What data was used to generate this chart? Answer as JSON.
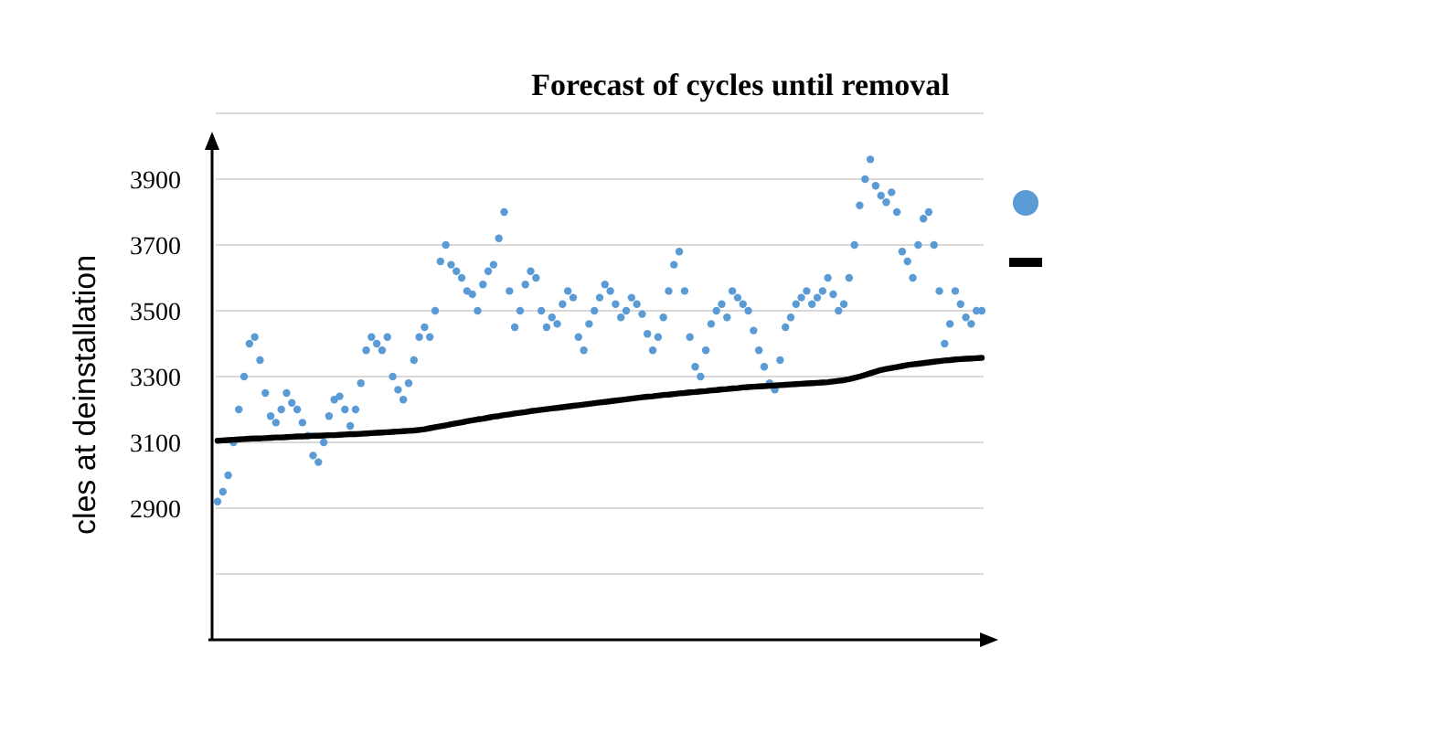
{
  "chart_data": {
    "type": "scatter",
    "title": "Forecast of cycles until removal",
    "ylabel": "cles at deinstallation",
    "categories": [
      null,
      null,
      null,
      null,
      null,
      null,
      null,
      null,
      null,
      null,
      null,
      null,
      null,
      null,
      null,
      null,
      null,
      null,
      null,
      null,
      null,
      null,
      null,
      null,
      null,
      null,
      null,
      null,
      null,
      null,
      null,
      null,
      null,
      null,
      null,
      null,
      null,
      null,
      null,
      null,
      null,
      null,
      null,
      null,
      null,
      null,
      null,
      null,
      null,
      null,
      null,
      null,
      null,
      null,
      null,
      null,
      null,
      null,
      null,
      null,
      null,
      null,
      null,
      null,
      null,
      null,
      null,
      null,
      null,
      null,
      null,
      null,
      null,
      null,
      null,
      null,
      null,
      null,
      null,
      null,
      null,
      null,
      null,
      null,
      null,
      null,
      null,
      null,
      null,
      null,
      null,
      null,
      null,
      null,
      null,
      null,
      null,
      null,
      null,
      null,
      null,
      null,
      null,
      null,
      null,
      null,
      null,
      null,
      null,
      null,
      null,
      null,
      null,
      null,
      null,
      null,
      null,
      null,
      null,
      null,
      null,
      null,
      null,
      null,
      null,
      null,
      null,
      null,
      null,
      null,
      null,
      null,
      null,
      null,
      null,
      null,
      null,
      null,
      null,
      null,
      null,
      null,
      null,
      null,
      null
    ],
    "series": [
      {
        "color": "#5b9bd5",
        "marker": "circle",
        "values": [
          2920,
          2950,
          3000,
          3100,
          3200,
          3300,
          3400,
          3420,
          3350,
          3250,
          3180,
          3160,
          3200,
          3250,
          3220,
          3200,
          3160,
          3120,
          3060,
          3040,
          3100,
          3180,
          3230,
          3240,
          3200,
          3150,
          3200,
          3280,
          3380,
          3420,
          3400,
          3380,
          3420,
          3300,
          3260,
          3230,
          3280,
          3350,
          3420,
          3450,
          3420,
          3500,
          3650,
          3700,
          3640,
          3620,
          3600,
          3560,
          3550,
          3500,
          3580,
          3620,
          3640,
          3720,
          3800,
          3560,
          3450,
          3500,
          3580,
          3620,
          3600,
          3500,
          3450,
          3480,
          3460,
          3520,
          3560,
          3540,
          3420,
          3380,
          3460,
          3500,
          3540,
          3580,
          3560,
          3520,
          3480,
          3500,
          3540,
          3520,
          3490,
          3430,
          3380,
          3420,
          3480,
          3560,
          3640,
          3680,
          3560,
          3420,
          3330,
          3300,
          3380,
          3460,
          3500,
          3520,
          3480,
          3560,
          3540,
          3520,
          3500,
          3440,
          3380,
          3330,
          3280,
          3260,
          3350,
          3450,
          3480,
          3520,
          3540,
          3560,
          3520,
          3540,
          3560,
          3600,
          3550,
          3500,
          3520,
          3600,
          3700,
          3820,
          3900,
          3960,
          3880,
          3850,
          3830,
          3860,
          3800,
          3680,
          3650,
          3600,
          3700,
          3780,
          3800,
          3700,
          3560,
          3400,
          3460,
          3560,
          3520,
          3480,
          3460,
          3500,
          3500
        ]
      },
      {
        "type": "line",
        "color": "#000000",
        "values": [
          3105,
          3106,
          3107,
          3108,
          3109,
          3110,
          3111,
          3112,
          3112,
          3113,
          3114,
          3115,
          3115,
          3116,
          3117,
          3118,
          3118,
          3119,
          3120,
          3120,
          3121,
          3122,
          3122,
          3123,
          3124,
          3125,
          3125,
          3126,
          3127,
          3128,
          3129,
          3130,
          3131,
          3132,
          3133,
          3134,
          3135,
          3136,
          3138,
          3140,
          3143,
          3146,
          3149,
          3152,
          3155,
          3158,
          3161,
          3164,
          3167,
          3170,
          3172,
          3175,
          3178,
          3180,
          3183,
          3185,
          3188,
          3190,
          3192,
          3195,
          3197,
          3199,
          3201,
          3203,
          3205,
          3207,
          3209,
          3211,
          3213,
          3215,
          3217,
          3219,
          3221,
          3223,
          3225,
          3227,
          3229,
          3231,
          3233,
          3235,
          3237,
          3239,
          3240,
          3242,
          3244,
          3245,
          3247,
          3249,
          3250,
          3252,
          3253,
          3255,
          3256,
          3258,
          3259,
          3261,
          3262,
          3264,
          3265,
          3267,
          3268,
          3269,
          3270,
          3271,
          3272,
          3273,
          3274,
          3275,
          3276,
          3277,
          3278,
          3279,
          3280,
          3281,
          3282,
          3283,
          3285,
          3287,
          3289,
          3292,
          3296,
          3300,
          3305,
          3310,
          3315,
          3320,
          3323,
          3326,
          3329,
          3332,
          3335,
          3337,
          3339,
          3341,
          3343,
          3345,
          3347,
          3349,
          3350,
          3352,
          3353,
          3354,
          3355,
          3356,
          3357
        ]
      }
    ],
    "ylim": [
      2500,
      4100
    ],
    "yticks": [
      {
        "value": 2500,
        "label": null
      },
      {
        "value": 2700,
        "label": null
      },
      2900,
      3100,
      3300,
      3500,
      3700,
      3900,
      {
        "value": 4100,
        "label": null
      }
    ],
    "grid": "y",
    "line_style": "solid",
    "tick_labels": "y"
  }
}
